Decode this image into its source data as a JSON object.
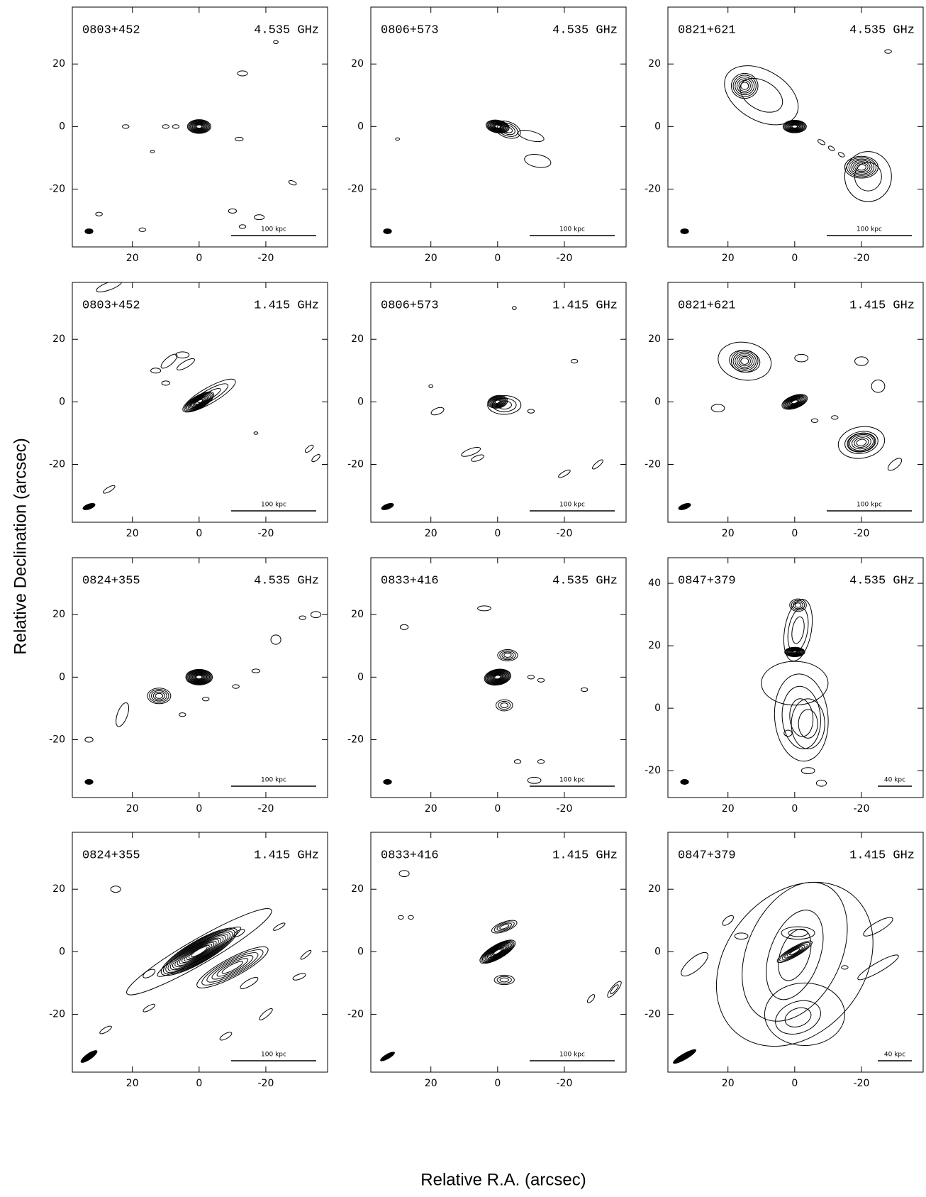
{
  "x_label": "Relative R.A. (arcsec)",
  "y_label": "Relative Declination (arcsec)",
  "chart_data": [
    {
      "type": "contour",
      "source": "0803+452",
      "frequency": "4.535 GHz",
      "scale_bar": "100 kpc",
      "xlim": [
        38,
        -38.5
      ],
      "ylim": [
        -38.5,
        38.2
      ],
      "xticks": [
        20,
        0,
        -20
      ],
      "yticks": [
        -20,
        0,
        20
      ]
    },
    {
      "type": "contour",
      "source": "0806+573",
      "frequency": "4.535 GHz",
      "scale_bar": "100 kpc",
      "xlim": [
        38,
        -38.5
      ],
      "ylim": [
        -38.5,
        38.2
      ],
      "xticks": [
        20,
        0,
        -20
      ],
      "yticks": [
        -20,
        0,
        20
      ]
    },
    {
      "type": "contour",
      "source": "0821+621",
      "frequency": "4.535 GHz",
      "scale_bar": "100 kpc",
      "xlim": [
        38,
        -38.5
      ],
      "ylim": [
        -38.5,
        38.2
      ],
      "xticks": [
        20,
        0,
        -20
      ],
      "yticks": [
        -20,
        0,
        20
      ]
    },
    {
      "type": "contour",
      "source": "0803+452",
      "frequency": "1.415 GHz",
      "scale_bar": "100 kpc",
      "xlim": [
        38,
        -38.5
      ],
      "ylim": [
        -38.5,
        38.2
      ],
      "xticks": [
        20,
        0,
        -20
      ],
      "yticks": [
        -20,
        0,
        20
      ]
    },
    {
      "type": "contour",
      "source": "0806+573",
      "frequency": "1.415 GHz",
      "scale_bar": "100 kpc",
      "xlim": [
        38,
        -38.5
      ],
      "ylim": [
        -38.5,
        38.2
      ],
      "xticks": [
        20,
        0,
        -20
      ],
      "yticks": [
        -20,
        0,
        20
      ]
    },
    {
      "type": "contour",
      "source": "0821+621",
      "frequency": "1.415 GHz",
      "scale_bar": "100 kpc",
      "xlim": [
        38,
        -38.5
      ],
      "ylim": [
        -38.5,
        38.2
      ],
      "xticks": [
        20,
        0,
        -20
      ],
      "yticks": [
        -20,
        0,
        20
      ]
    },
    {
      "type": "contour",
      "source": "0824+355",
      "frequency": "4.535 GHz",
      "scale_bar": "100 kpc",
      "xlim": [
        38,
        -38.5
      ],
      "ylim": [
        -38.5,
        38.2
      ],
      "xticks": [
        20,
        0,
        -20
      ],
      "yticks": [
        -20,
        0,
        20
      ]
    },
    {
      "type": "contour",
      "source": "0833+416",
      "frequency": "4.535 GHz",
      "scale_bar": "100 kpc",
      "xlim": [
        38,
        -38.5
      ],
      "ylim": [
        -38.5,
        38.2
      ],
      "xticks": [
        20,
        0,
        -20
      ],
      "yticks": [
        -20,
        0,
        20
      ]
    },
    {
      "type": "contour",
      "source": "0847+379",
      "frequency": "4.535 GHz",
      "scale_bar": "40 kpc",
      "xlim": [
        38,
        -38.5
      ],
      "ylim": [
        -28.6,
        48.2
      ],
      "xticks": [
        20,
        0,
        -20
      ],
      "yticks": [
        -20,
        0,
        20,
        40
      ]
    },
    {
      "type": "contour",
      "source": "0824+355",
      "frequency": "1.415 GHz",
      "scale_bar": "100 kpc",
      "xlim": [
        38,
        -38.5
      ],
      "ylim": [
        -38.5,
        38.2
      ],
      "xticks": [
        20,
        0,
        -20
      ],
      "yticks": [
        -20,
        0,
        20
      ]
    },
    {
      "type": "contour",
      "source": "0833+416",
      "frequency": "1.415 GHz",
      "scale_bar": "100 kpc",
      "xlim": [
        38,
        -38.5
      ],
      "ylim": [
        -38.5,
        38.2
      ],
      "xticks": [
        20,
        0,
        -20
      ],
      "yticks": [
        -20,
        0,
        20
      ]
    },
    {
      "type": "contour",
      "source": "0847+379",
      "frequency": "1.415 GHz",
      "scale_bar": "40 kpc",
      "xlim": [
        38,
        -38.5
      ],
      "ylim": [
        -38.5,
        38.2
      ],
      "xticks": [
        20,
        0,
        -20
      ],
      "yticks": [
        -20,
        0,
        20
      ]
    }
  ]
}
